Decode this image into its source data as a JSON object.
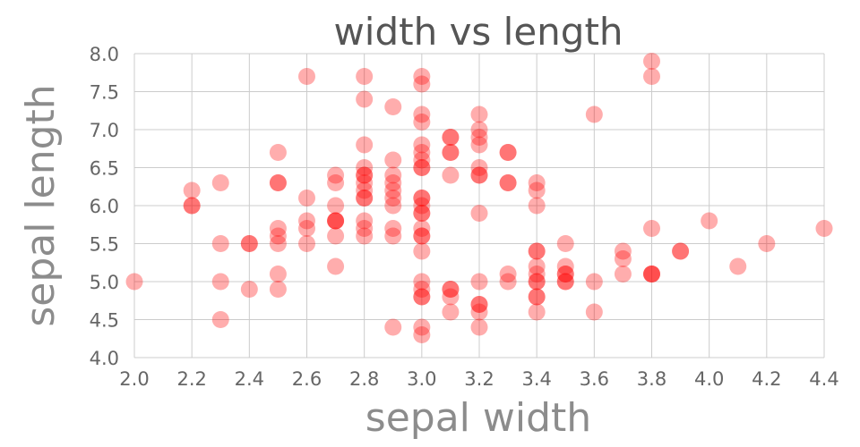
{
  "chart_data": {
    "type": "scatter",
    "title": "width vs length",
    "xlabel": "sepal width",
    "ylabel": "sepal length",
    "xlim": [
      2.0,
      4.4
    ],
    "ylim": [
      4.0,
      8.0
    ],
    "xticks": [
      "2.0",
      "2.2",
      "2.4",
      "2.6",
      "2.8",
      "3.0",
      "3.2",
      "3.4",
      "3.6",
      "3.8",
      "4.0",
      "4.2",
      "4.4"
    ],
    "yticks": [
      "4.0",
      "4.5",
      "5.0",
      "5.5",
      "6.0",
      "6.5",
      "7.0",
      "7.5",
      "8.0"
    ],
    "grid": true,
    "point_color": "#ff0000",
    "points": [
      [
        2.0,
        5.0
      ],
      [
        2.2,
        6.2
      ],
      [
        2.2,
        6.0
      ],
      [
        2.2,
        6.0
      ],
      [
        2.3,
        6.3
      ],
      [
        2.3,
        5.5
      ],
      [
        2.3,
        5.0
      ],
      [
        2.3,
        4.5
      ],
      [
        2.4,
        5.5
      ],
      [
        2.4,
        5.5
      ],
      [
        2.4,
        4.9
      ],
      [
        2.5,
        6.7
      ],
      [
        2.5,
        6.3
      ],
      [
        2.5,
        6.3
      ],
      [
        2.5,
        5.7
      ],
      [
        2.5,
        5.6
      ],
      [
        2.5,
        5.5
      ],
      [
        2.5,
        5.1
      ],
      [
        2.5,
        4.9
      ],
      [
        2.6,
        7.7
      ],
      [
        2.6,
        6.1
      ],
      [
        2.6,
        5.8
      ],
      [
        2.6,
        5.7
      ],
      [
        2.6,
        5.5
      ],
      [
        2.7,
        6.4
      ],
      [
        2.7,
        6.3
      ],
      [
        2.7,
        6.0
      ],
      [
        2.7,
        5.8
      ],
      [
        2.7,
        5.8
      ],
      [
        2.7,
        5.8
      ],
      [
        2.7,
        5.6
      ],
      [
        2.7,
        5.2
      ],
      [
        2.8,
        7.7
      ],
      [
        2.8,
        7.4
      ],
      [
        2.8,
        6.8
      ],
      [
        2.8,
        6.5
      ],
      [
        2.8,
        6.4
      ],
      [
        2.8,
        6.4
      ],
      [
        2.8,
        6.3
      ],
      [
        2.8,
        6.2
      ],
      [
        2.8,
        6.1
      ],
      [
        2.8,
        6.1
      ],
      [
        2.8,
        5.8
      ],
      [
        2.8,
        5.7
      ],
      [
        2.8,
        5.6
      ],
      [
        2.9,
        7.3
      ],
      [
        2.9,
        6.6
      ],
      [
        2.9,
        6.4
      ],
      [
        2.9,
        6.3
      ],
      [
        2.9,
        6.2
      ],
      [
        2.9,
        6.1
      ],
      [
        2.9,
        6.0
      ],
      [
        2.9,
        5.7
      ],
      [
        2.9,
        5.6
      ],
      [
        2.9,
        4.4
      ],
      [
        3.0,
        7.7
      ],
      [
        3.0,
        7.6
      ],
      [
        3.0,
        7.2
      ],
      [
        3.0,
        7.1
      ],
      [
        3.0,
        6.8
      ],
      [
        3.0,
        6.7
      ],
      [
        3.0,
        6.6
      ],
      [
        3.0,
        6.5
      ],
      [
        3.0,
        6.5
      ],
      [
        3.0,
        6.1
      ],
      [
        3.0,
        6.1
      ],
      [
        3.0,
        6.0
      ],
      [
        3.0,
        5.9
      ],
      [
        3.0,
        5.9
      ],
      [
        3.0,
        5.7
      ],
      [
        3.0,
        5.6
      ],
      [
        3.0,
        5.6
      ],
      [
        3.0,
        5.4
      ],
      [
        3.0,
        5.0
      ],
      [
        3.0,
        4.9
      ],
      [
        3.0,
        4.8
      ],
      [
        3.0,
        4.8
      ],
      [
        3.0,
        4.4
      ],
      [
        3.0,
        4.3
      ],
      [
        3.1,
        6.9
      ],
      [
        3.1,
        6.9
      ],
      [
        3.1,
        6.7
      ],
      [
        3.1,
        6.7
      ],
      [
        3.1,
        6.4
      ],
      [
        3.1,
        4.9
      ],
      [
        3.1,
        4.9
      ],
      [
        3.1,
        4.8
      ],
      [
        3.1,
        4.6
      ],
      [
        3.2,
        7.2
      ],
      [
        3.2,
        7.0
      ],
      [
        3.2,
        6.9
      ],
      [
        3.2,
        6.8
      ],
      [
        3.2,
        6.5
      ],
      [
        3.2,
        6.4
      ],
      [
        3.2,
        6.4
      ],
      [
        3.2,
        5.9
      ],
      [
        3.2,
        5.0
      ],
      [
        3.2,
        4.7
      ],
      [
        3.2,
        4.7
      ],
      [
        3.2,
        4.6
      ],
      [
        3.2,
        4.4
      ],
      [
        3.3,
        6.7
      ],
      [
        3.3,
        6.7
      ],
      [
        3.3,
        6.3
      ],
      [
        3.3,
        6.3
      ],
      [
        3.3,
        5.1
      ],
      [
        3.3,
        5.0
      ],
      [
        3.4,
        6.3
      ],
      [
        3.4,
        6.2
      ],
      [
        3.4,
        6.0
      ],
      [
        3.4,
        5.4
      ],
      [
        3.4,
        5.4
      ],
      [
        3.4,
        5.2
      ],
      [
        3.4,
        5.1
      ],
      [
        3.4,
        5.0
      ],
      [
        3.4,
        5.0
      ],
      [
        3.4,
        4.8
      ],
      [
        3.4,
        4.8
      ],
      [
        3.4,
        4.6
      ],
      [
        3.5,
        5.5
      ],
      [
        3.5,
        5.2
      ],
      [
        3.5,
        5.1
      ],
      [
        3.5,
        5.1
      ],
      [
        3.5,
        5.0
      ],
      [
        3.5,
        5.0
      ],
      [
        3.6,
        7.2
      ],
      [
        3.6,
        5.0
      ],
      [
        3.6,
        4.6
      ],
      [
        3.7,
        5.4
      ],
      [
        3.7,
        5.3
      ],
      [
        3.7,
        5.1
      ],
      [
        3.8,
        7.9
      ],
      [
        3.8,
        7.7
      ],
      [
        3.8,
        5.7
      ],
      [
        3.8,
        5.1
      ],
      [
        3.8,
        5.1
      ],
      [
        3.8,
        5.1
      ],
      [
        3.9,
        5.4
      ],
      [
        3.9,
        5.4
      ],
      [
        4.0,
        5.8
      ],
      [
        4.1,
        5.2
      ],
      [
        4.2,
        5.5
      ],
      [
        4.4,
        5.7
      ]
    ]
  }
}
